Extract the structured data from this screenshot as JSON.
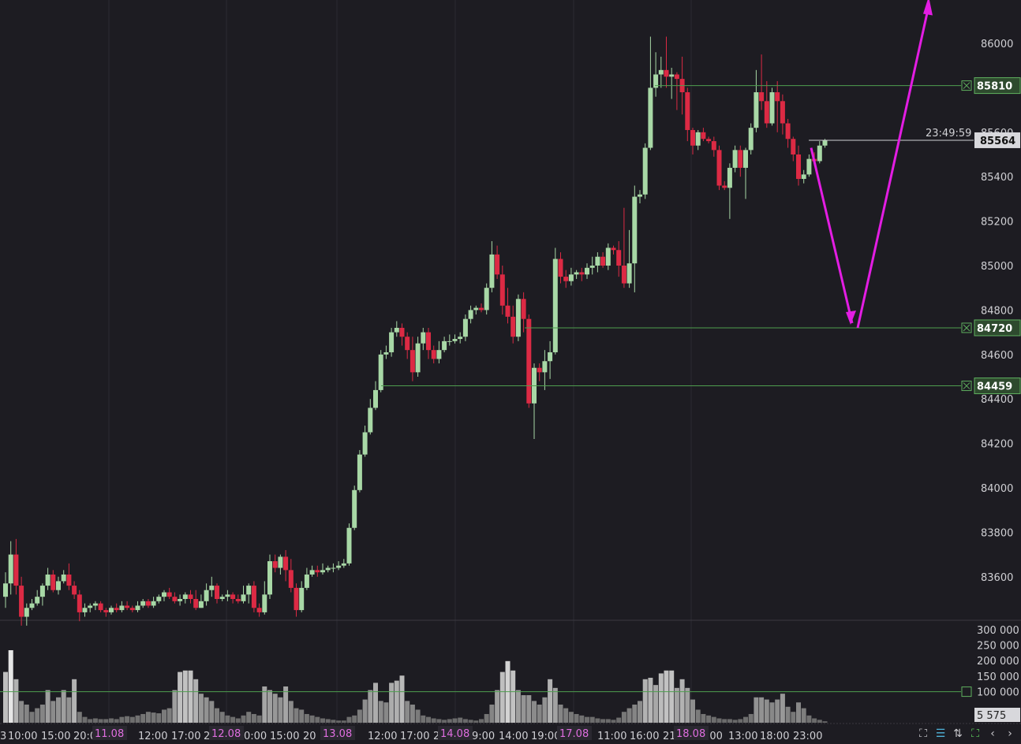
{
  "chart_data": {
    "type": "candlestick",
    "price_axis": {
      "ticks": [
        "86000",
        "85600",
        "85400",
        "85200",
        "85000",
        "84800",
        "84600",
        "84400",
        "84200",
        "84000",
        "83800",
        "83600"
      ]
    },
    "volume_axis": {
      "ticks": [
        "300 000",
        "250 000",
        "200 000",
        "150 000",
        "100 000"
      ],
      "ylim": [
        0,
        330000
      ]
    },
    "current_price": "85564",
    "countdown": "23:49:59",
    "last_volume": "5 575",
    "horizontal_levels": [
      {
        "label": "85810",
        "price": 85810
      },
      {
        "label": "84720",
        "price": 84720
      },
      {
        "label": "84459",
        "price": 84459
      }
    ],
    "volume_level": 100000,
    "time_labels": [
      "3",
      "10:00",
      "15:00",
      "20:00",
      "12:00",
      "17:00",
      "2",
      "0:00",
      "15:00",
      "20",
      "12:00",
      "17:00",
      "2",
      "9:00",
      "14:00",
      "19:00",
      "11:00",
      "16:00",
      "21",
      ":00",
      "13:00",
      "18:00",
      "23:00"
    ],
    "date_labels": [
      "11.08",
      "12.08",
      "13.08",
      "14.08",
      "17.08",
      "18.08"
    ],
    "projection": {
      "from": 85530,
      "low": 84720,
      "target": 86140
    },
    "candles": [
      [
        83510,
        83570,
        83460,
        83620,
        0.7
      ],
      [
        83570,
        83700,
        83520,
        83760,
        1.0
      ],
      [
        83700,
        83560,
        83520,
        83770,
        0.6
      ],
      [
        83560,
        83420,
        83380,
        83600,
        0.3
      ],
      [
        83420,
        83460,
        83380,
        83480,
        0.25
      ],
      [
        83460,
        83480,
        83450,
        83500,
        0.15
      ],
      [
        83480,
        83510,
        83470,
        83540,
        0.2
      ],
      [
        83510,
        83560,
        83470,
        83570,
        0.25
      ],
      [
        83560,
        83610,
        83540,
        83640,
        0.45
      ],
      [
        83610,
        83540,
        83530,
        83630,
        0.3
      ],
      [
        83540,
        83580,
        83520,
        83600,
        0.35
      ],
      [
        83580,
        83610,
        83570,
        83630,
        0.45
      ],
      [
        83610,
        83560,
        83540,
        83660,
        0.35
      ],
      [
        83560,
        83520,
        83500,
        83580,
        0.6
      ],
      [
        83520,
        83440,
        83400,
        83540,
        0.15
      ],
      [
        83440,
        83460,
        83420,
        83480,
        0.08
      ],
      [
        83460,
        83470,
        83440,
        83480,
        0.05
      ],
      [
        83470,
        83480,
        83450,
        83490,
        0.06
      ],
      [
        83480,
        83450,
        83440,
        83490,
        0.05
      ],
      [
        83450,
        83440,
        83420,
        83460,
        0.05
      ],
      [
        83440,
        83460,
        83430,
        83470,
        0.06
      ],
      [
        83460,
        83450,
        83440,
        83480,
        0.05
      ],
      [
        83450,
        83470,
        83440,
        83490,
        0.08
      ],
      [
        83470,
        83460,
        83450,
        83490,
        0.09
      ],
      [
        83460,
        83450,
        83440,
        83470,
        0.08
      ],
      [
        83450,
        83470,
        83440,
        83490,
        0.1
      ],
      [
        83470,
        83490,
        83460,
        83500,
        0.12
      ],
      [
        83490,
        83470,
        83460,
        83500,
        0.15
      ],
      [
        83470,
        83490,
        83460,
        83510,
        0.14
      ],
      [
        83490,
        83510,
        83480,
        83520,
        0.13
      ],
      [
        83510,
        83530,
        83490,
        83540,
        0.18
      ],
      [
        83530,
        83510,
        83500,
        83550,
        0.2
      ],
      [
        83510,
        83490,
        83480,
        83530,
        0.45
      ],
      [
        83490,
        83500,
        83470,
        83520,
        0.7
      ],
      [
        83500,
        83520,
        83480,
        83530,
        0.72
      ],
      [
        83520,
        83500,
        83480,
        83540,
        0.72
      ],
      [
        83500,
        83460,
        83450,
        83540,
        0.6
      ],
      [
        83460,
        83490,
        83460,
        83520,
        0.4
      ],
      [
        83490,
        83540,
        83470,
        83570,
        0.35
      ],
      [
        83540,
        83560,
        83510,
        83600,
        0.3
      ],
      [
        83560,
        83500,
        83480,
        83570,
        0.2
      ],
      [
        83500,
        83510,
        83490,
        83520,
        0.15
      ],
      [
        83510,
        83520,
        83490,
        83540,
        0.1
      ],
      [
        83520,
        83500,
        83480,
        83530,
        0.08
      ],
      [
        83500,
        83490,
        83480,
        83520,
        0.06
      ],
      [
        83490,
        83520,
        83480,
        83560,
        0.1
      ],
      [
        83520,
        83560,
        83480,
        83570,
        0.15
      ],
      [
        83560,
        83460,
        83440,
        83580,
        0.12
      ],
      [
        83460,
        83440,
        83420,
        83480,
        0.1
      ],
      [
        83440,
        83520,
        83430,
        83580,
        0.5
      ],
      [
        83520,
        83670,
        83500,
        83700,
        0.45
      ],
      [
        83670,
        83640,
        83620,
        83700,
        0.4
      ],
      [
        83640,
        83690,
        83610,
        83700,
        0.35
      ],
      [
        83690,
        83630,
        83580,
        83720,
        0.5
      ],
      [
        83630,
        83550,
        83530,
        83680,
        0.3
      ],
      [
        83550,
        83450,
        83420,
        83570,
        0.2
      ],
      [
        83450,
        83550,
        83440,
        83580,
        0.18
      ],
      [
        83550,
        83610,
        83540,
        83640,
        0.12
      ],
      [
        83610,
        83630,
        83600,
        83650,
        0.1
      ],
      [
        83630,
        83620,
        83600,
        83650,
        0.08
      ],
      [
        83620,
        83630,
        83610,
        83660,
        0.06
      ],
      [
        83630,
        83640,
        83620,
        83650,
        0.05
      ],
      [
        83640,
        83640,
        83620,
        83660,
        0.04
      ],
      [
        83640,
        83650,
        83630,
        83670,
        0.03
      ],
      [
        83650,
        83660,
        83640,
        83680,
        0.03
      ],
      [
        83660,
        83820,
        83650,
        83840,
        0.08
      ],
      [
        83820,
        83990,
        83810,
        84010,
        0.1
      ],
      [
        83990,
        84150,
        83980,
        84170,
        0.18
      ],
      [
        84150,
        84250,
        84140,
        84280,
        0.32
      ],
      [
        84250,
        84360,
        84240,
        84400,
        0.45
      ],
      [
        84360,
        84440,
        84350,
        84480,
        0.55
      ],
      [
        84440,
        84600,
        84430,
        84620,
        0.3
      ],
      [
        84600,
        84610,
        84580,
        84640,
        0.28
      ],
      [
        84610,
        84700,
        84590,
        84720,
        0.55
      ],
      [
        84700,
        84720,
        84680,
        84750,
        0.58
      ],
      [
        84720,
        84680,
        84640,
        84740,
        0.65
      ],
      [
        84680,
        84620,
        84580,
        84700,
        0.3
      ],
      [
        84620,
        84520,
        84480,
        84680,
        0.25
      ],
      [
        84520,
        84650,
        84500,
        84680,
        0.18
      ],
      [
        84650,
        84700,
        84620,
        84720,
        0.1
      ],
      [
        84700,
        84620,
        84580,
        84720,
        0.08
      ],
      [
        84620,
        84580,
        84560,
        84640,
        0.06
      ],
      [
        84580,
        84620,
        84560,
        84660,
        0.05
      ],
      [
        84620,
        84660,
        84610,
        84680,
        0.04
      ],
      [
        84660,
        84660,
        84640,
        84690,
        0.05
      ],
      [
        84660,
        84670,
        84650,
        84690,
        0.06
      ],
      [
        84670,
        84680,
        84650,
        84700,
        0.07
      ],
      [
        84680,
        84760,
        84660,
        84780,
        0.05
      ],
      [
        84760,
        84800,
        84740,
        84820,
        0.04
      ],
      [
        84800,
        84810,
        84780,
        84820,
        0.03
      ],
      [
        84810,
        84800,
        84790,
        84830,
        0.05
      ],
      [
        84800,
        84900,
        84780,
        84920,
        0.12
      ],
      [
        84900,
        85050,
        84880,
        85110,
        0.25
      ],
      [
        85050,
        84960,
        84940,
        85090,
        0.45
      ],
      [
        84960,
        84820,
        84780,
        85000,
        0.7
      ],
      [
        84820,
        84770,
        84740,
        84900,
        0.85
      ],
      [
        84770,
        84680,
        84650,
        84820,
        0.72
      ],
      [
        84680,
        84850,
        84660,
        84870,
        0.45
      ],
      [
        84850,
        84760,
        84700,
        84880,
        0.38
      ],
      [
        84760,
        84380,
        84360,
        84780,
        0.38
      ],
      [
        84380,
        84540,
        84220,
        84560,
        0.3
      ],
      [
        84540,
        84520,
        84480,
        84560,
        0.25
      ],
      [
        84520,
        84570,
        84440,
        84620,
        0.35
      ],
      [
        84570,
        84610,
        84490,
        84660,
        0.6
      ],
      [
        84610,
        85030,
        84600,
        85080,
        0.48
      ],
      [
        85030,
        84950,
        84920,
        85060,
        0.25
      ],
      [
        84950,
        84930,
        84900,
        84980,
        0.2
      ],
      [
        84930,
        84960,
        84910,
        84990,
        0.15
      ],
      [
        84960,
        84970,
        84940,
        84980,
        0.12
      ],
      [
        84970,
        84960,
        84930,
        84990,
        0.1
      ],
      [
        84960,
        84990,
        84940,
        85010,
        0.08
      ],
      [
        84990,
        85000,
        84960,
        85040,
        0.08
      ],
      [
        85000,
        85040,
        84970,
        85060,
        0.06
      ],
      [
        85040,
        85000,
        84990,
        85060,
        0.05
      ],
      [
        85000,
        85080,
        84980,
        85100,
        0.05
      ],
      [
        85080,
        85070,
        85050,
        85090,
        0.04
      ],
      [
        85070,
        85000,
        84950,
        85110,
        0.07
      ],
      [
        85000,
        84920,
        84900,
        85260,
        0.15
      ],
      [
        84920,
        85010,
        84900,
        85160,
        0.2
      ],
      [
        85010,
        85310,
        84880,
        85360,
        0.25
      ],
      [
        85310,
        85320,
        85280,
        85340,
        0.3
      ],
      [
        85320,
        85530,
        85300,
        85550,
        0.6
      ],
      [
        85530,
        85800,
        85520,
        86030,
        0.62
      ],
      [
        85800,
        85860,
        85760,
        85960,
        0.52
      ],
      [
        85860,
        85880,
        85800,
        85940,
        0.68
      ],
      [
        85880,
        85850,
        85800,
        86030,
        0.72
      ],
      [
        85850,
        85860,
        85750,
        85890,
        0.72
      ],
      [
        85860,
        85840,
        85700,
        85870,
        0.48
      ],
      [
        85840,
        85780,
        85680,
        85940,
        0.6
      ],
      [
        85780,
        85610,
        85560,
        85800,
        0.48
      ],
      [
        85610,
        85540,
        85500,
        85620,
        0.32
      ],
      [
        85540,
        85600,
        85520,
        85610,
        0.18
      ],
      [
        85600,
        85570,
        85560,
        85620,
        0.12
      ],
      [
        85570,
        85560,
        85550,
        85580,
        0.1
      ],
      [
        85560,
        85520,
        85490,
        85580,
        0.08
      ],
      [
        85520,
        85360,
        85340,
        85540,
        0.06
      ],
      [
        85360,
        85350,
        85340,
        85380,
        0.05
      ],
      [
        85350,
        85440,
        85210,
        85460,
        0.05
      ],
      [
        85440,
        85520,
        85420,
        85540,
        0.04
      ],
      [
        85520,
        85440,
        85400,
        85540,
        0.05
      ],
      [
        85440,
        85520,
        85300,
        85530,
        0.08
      ],
      [
        85520,
        85620,
        85500,
        85640,
        0.12
      ],
      [
        85620,
        85780,
        85600,
        85880,
        0.35
      ],
      [
        85780,
        85740,
        85700,
        85950,
        0.35
      ],
      [
        85740,
        85640,
        85620,
        85830,
        0.32
      ],
      [
        85640,
        85780,
        85630,
        85800,
        0.28
      ],
      [
        85780,
        85740,
        85600,
        85830,
        0.32
      ],
      [
        85740,
        85640,
        85590,
        85770,
        0.4
      ],
      [
        85640,
        85570,
        85530,
        85660,
        0.22
      ],
      [
        85570,
        85500,
        85470,
        85580,
        0.15
      ],
      [
        85500,
        85390,
        85360,
        85540,
        0.28
      ],
      [
        85390,
        85410,
        85370,
        85430,
        0.2
      ],
      [
        85410,
        85480,
        85400,
        85500,
        0.1
      ],
      [
        85480,
        85470,
        85450,
        85510,
        0.06
      ],
      [
        85470,
        85540,
        85460,
        85560,
        0.04
      ],
      [
        85540,
        85564,
        85530,
        85570,
        0.02
      ]
    ]
  }
}
